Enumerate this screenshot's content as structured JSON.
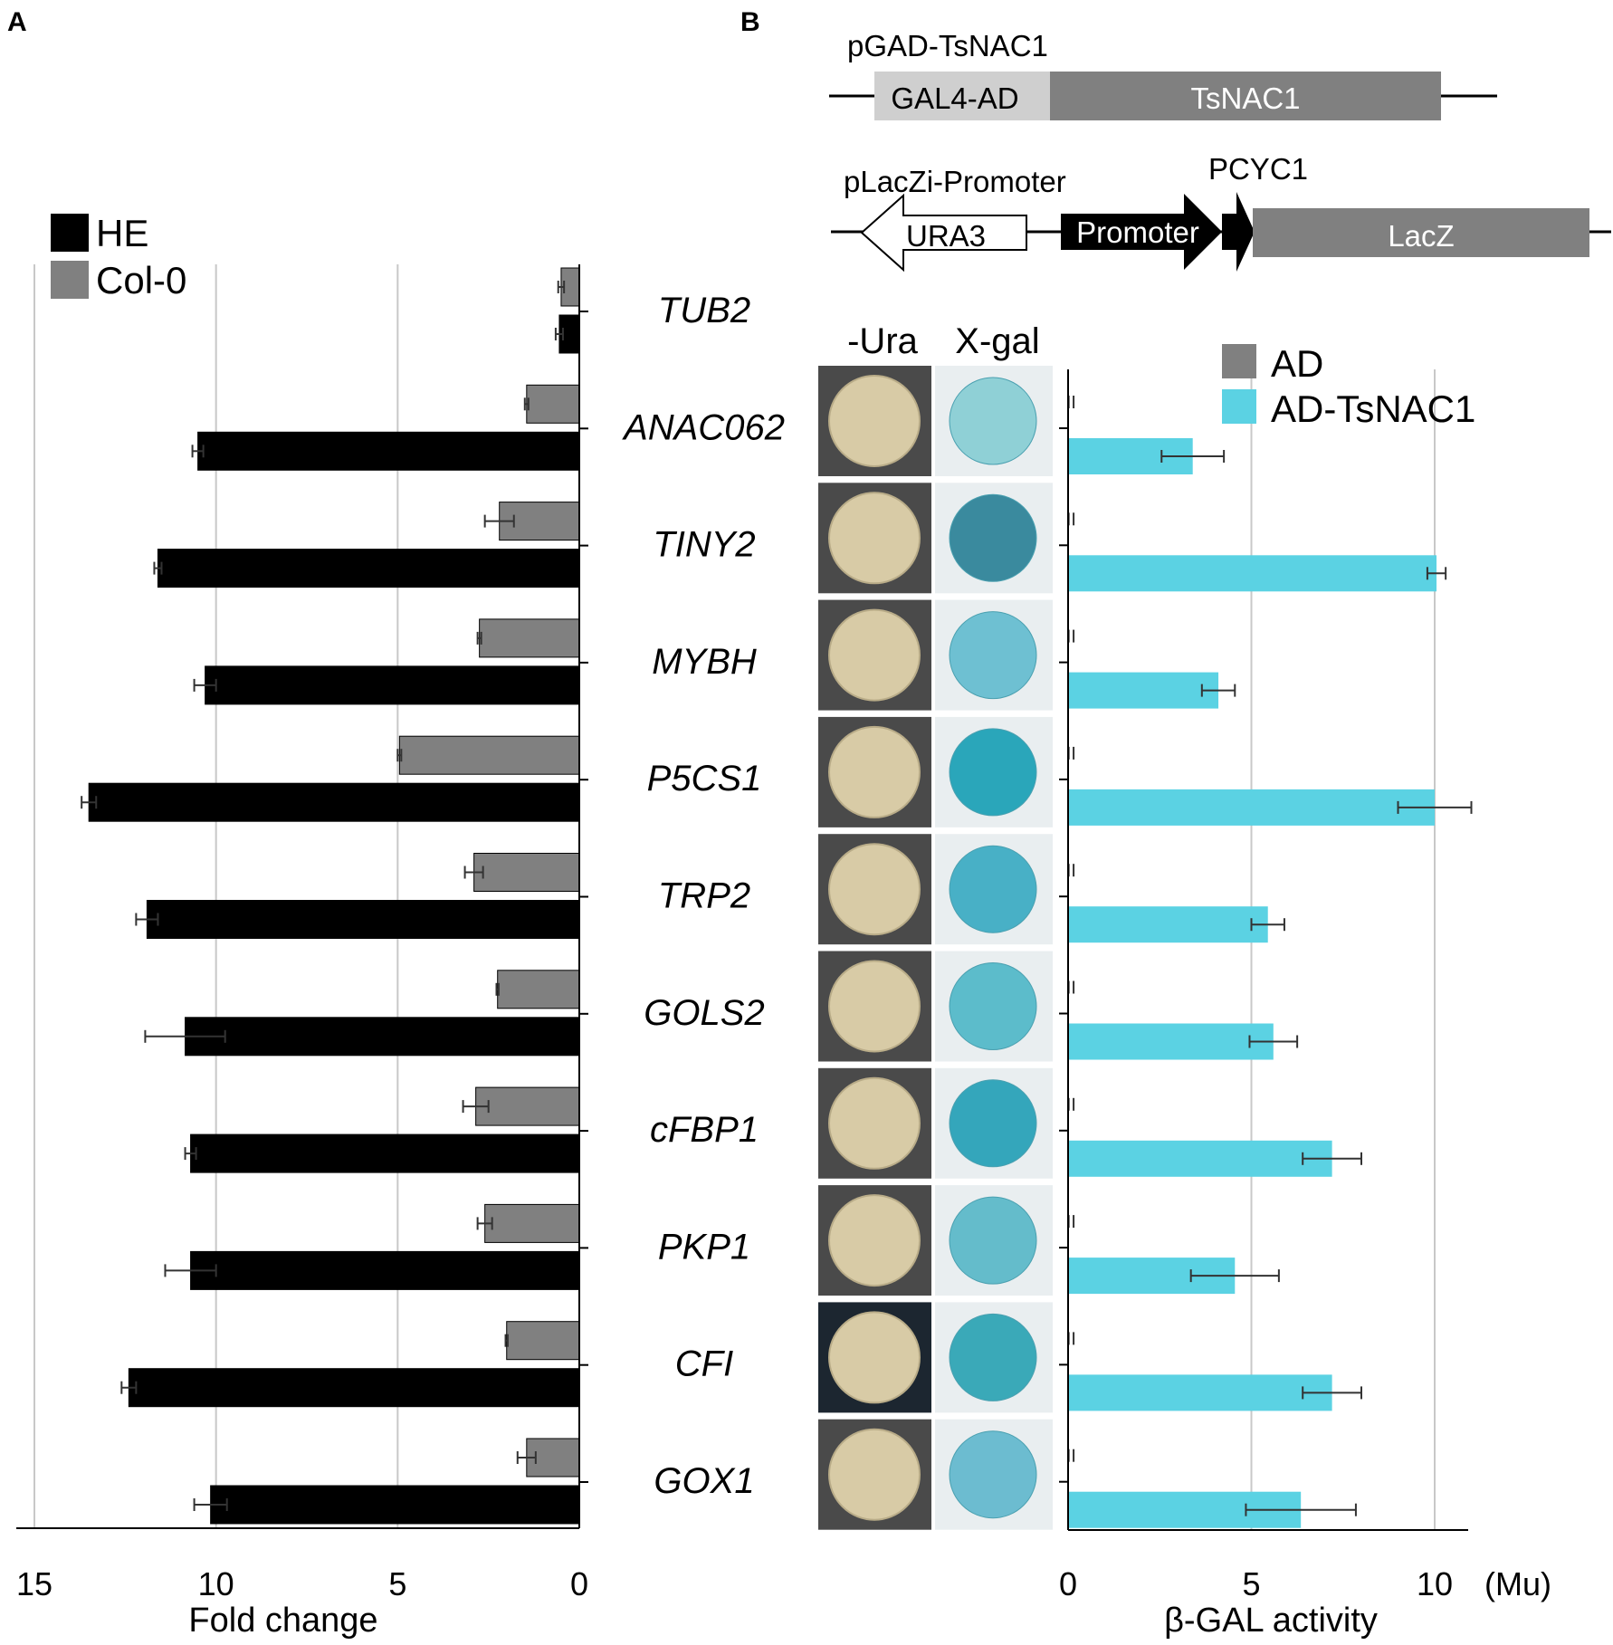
{
  "panel_labels": {
    "a": "A",
    "b": "B"
  },
  "construct1": {
    "name": "pGAD-TsNAC1",
    "box1": "GAL4-AD",
    "box2": "TsNAC1"
  },
  "construct2": {
    "name": "pLacZi-Promoter",
    "ura3": "URA3",
    "promoter": "Promoter",
    "pcyc1": "PCYC1",
    "lacz": "LacZ"
  },
  "plate_headers": {
    "ura": "-Ura",
    "xgal": "X-gal"
  },
  "chart_data": [
    {
      "type": "bar",
      "orientation": "horizontal",
      "xaxis_direction": "reversed",
      "categories": [
        "TUB2",
        "ANAC062",
        "TINY2",
        "MYBH",
        "P5CS1",
        "TRP2",
        "GOLS2",
        "cFBP1",
        "PKP1",
        "CFI",
        "GOX1"
      ],
      "series": [
        {
          "name": "HE",
          "color": "#000000",
          "values": [
            0.55,
            10.5,
            11.6,
            10.3,
            13.5,
            11.9,
            10.85,
            10.7,
            10.7,
            12.4,
            10.15
          ],
          "errors": [
            0.1,
            0.15,
            0.1,
            0.3,
            0.2,
            0.3,
            1.1,
            0.15,
            0.7,
            0.2,
            0.45
          ]
        },
        {
          "name": "Col-0",
          "color": "#808080",
          "values": [
            0.5,
            1.45,
            2.2,
            2.75,
            4.95,
            2.9,
            2.25,
            2.85,
            2.6,
            2.0,
            1.45
          ],
          "errors": [
            0.08,
            0.05,
            0.4,
            0.05,
            0.05,
            0.25,
            0.03,
            0.35,
            0.2,
            0.03,
            0.25
          ]
        }
      ],
      "xlabel": "Fold change",
      "xlim": [
        0,
        15
      ],
      "xticks": [
        15,
        10,
        5,
        0
      ],
      "grid": true,
      "legend_position": "top-left"
    },
    {
      "type": "bar",
      "orientation": "horizontal",
      "categories": [
        "ANAC062",
        "TINY2",
        "MYBH",
        "P5CS1",
        "TRP2",
        "GOLS2",
        "cFBP1",
        "PKP1",
        "CFI",
        "GOX1"
      ],
      "series": [
        {
          "name": "AD",
          "color": "#808080",
          "values": [
            0.05,
            0.05,
            0.05,
            0.05,
            0.05,
            0.05,
            0.05,
            0.05,
            0.05,
            0.05
          ],
          "errors": [
            0.1,
            0.1,
            0.1,
            0.1,
            0.1,
            0.1,
            0.1,
            0.1,
            0.1,
            0.1
          ]
        },
        {
          "name": "AD-TsNAC1",
          "color": "#5BD2E3",
          "values": [
            3.4,
            10.05,
            4.1,
            10.0,
            5.45,
            5.6,
            7.2,
            4.55,
            7.2,
            6.35
          ],
          "errors": [
            0.85,
            0.25,
            0.45,
            1.0,
            0.45,
            0.65,
            0.8,
            1.2,
            0.8,
            1.5
          ]
        }
      ],
      "xlabel": "β-GAL activity",
      "xunit": "(Mu)",
      "xlim": [
        0,
        11
      ],
      "xticks": [
        0,
        5,
        10
      ],
      "grid": true,
      "legend_position": "top-right"
    }
  ]
}
